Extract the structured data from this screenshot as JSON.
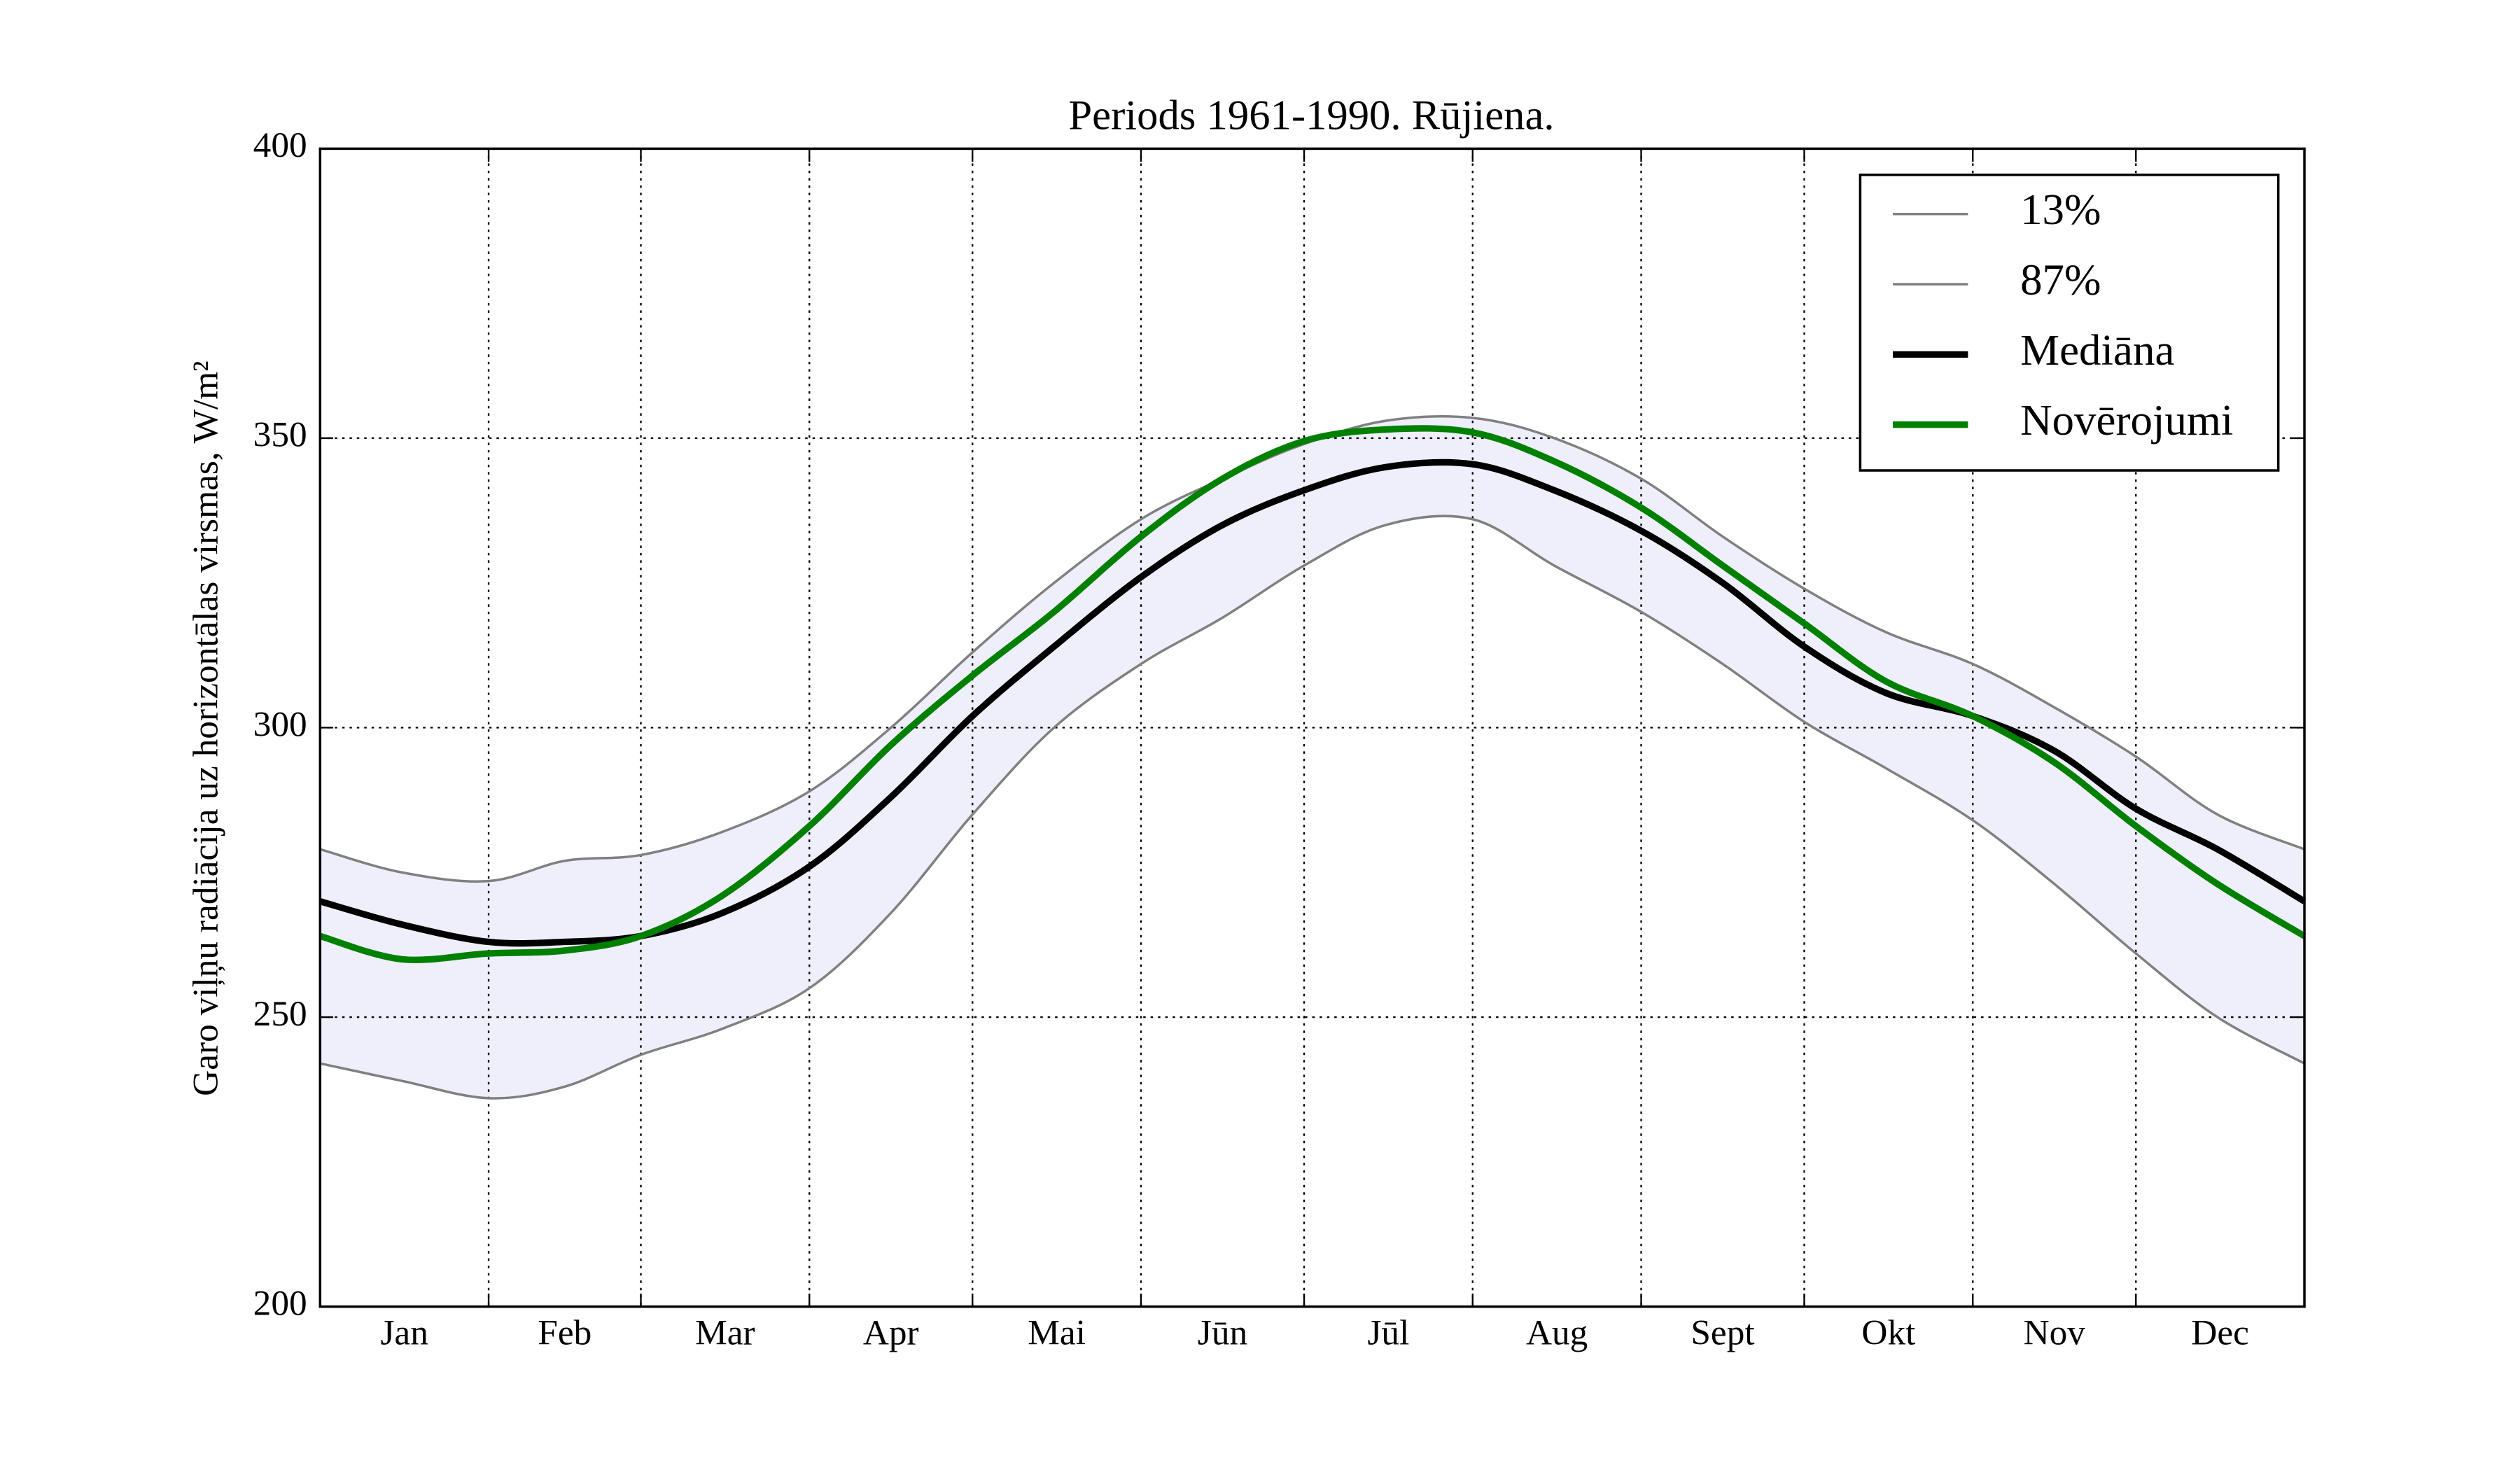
{
  "chart_data": {
    "type": "line",
    "title": "Periods 1961-1990. Rūjiena.",
    "ylabel": "Garo viļņu radiācija uz horizontālas virsmas, W/m²",
    "x": [
      0,
      15,
      31,
      45,
      59,
      74,
      90,
      105,
      120,
      135,
      151,
      166,
      181,
      196,
      212,
      227,
      243,
      258,
      273,
      288,
      304,
      319,
      334,
      349,
      365
    ],
    "series": [
      {
        "name": "13%",
        "color": "#808080",
        "width": 1.5,
        "values": [
          242,
          239,
          236,
          238,
          243.5,
          248,
          255,
          268,
          285,
          300,
          311,
          319,
          328,
          335,
          336,
          328,
          320,
          311,
          301,
          293,
          284,
          273,
          261,
          250,
          242
        ]
      },
      {
        "name": "87%",
        "color": "#808080",
        "width": 1.5,
        "values": [
          279,
          275,
          273.5,
          277,
          278,
          282,
          289,
          300,
          313,
          325,
          336,
          343,
          349,
          353,
          353.5,
          350,
          343,
          333,
          324,
          316.5,
          311,
          303.5,
          295,
          285,
          279
        ]
      },
      {
        "name": "Mediāna",
        "color": "#000000",
        "width": 4,
        "values": [
          270,
          266,
          263,
          263,
          264,
          268,
          276,
          288,
          302,
          314,
          326,
          335,
          341,
          345,
          345.5,
          341,
          334,
          325,
          314,
          306,
          302,
          296,
          286,
          279,
          270
        ]
      },
      {
        "name": "Novērojumi",
        "color": "#008000",
        "width": 4,
        "values": [
          264,
          260,
          261,
          261.5,
          264,
          271,
          283,
          297,
          309,
          320,
          333,
          343,
          349.5,
          351.5,
          351,
          346,
          338,
          328,
          318,
          308,
          302,
          294,
          283,
          273,
          264
        ]
      }
    ],
    "band_color": "#efeffc",
    "xlim": [
      0,
      365
    ],
    "xticks": [
      {
        "value": 15.5,
        "label": "Jan"
      },
      {
        "value": 45,
        "label": "Feb"
      },
      {
        "value": 74.5,
        "label": "Mar"
      },
      {
        "value": 105,
        "label": "Apr"
      },
      {
        "value": 135.5,
        "label": "Mai"
      },
      {
        "value": 166,
        "label": "Jūn"
      },
      {
        "value": 196.5,
        "label": "Jūl"
      },
      {
        "value": 227.5,
        "label": "Aug"
      },
      {
        "value": 258,
        "label": "Sept"
      },
      {
        "value": 288.5,
        "label": "Okt"
      },
      {
        "value": 319,
        "label": "Nov"
      },
      {
        "value": 349.5,
        "label": "Dec"
      }
    ],
    "xgrid": [
      31,
      59,
      90,
      120,
      151,
      181,
      212,
      243,
      273,
      304,
      334
    ],
    "ylim": [
      200,
      400
    ],
    "yticks": [
      200,
      250,
      300,
      350,
      400
    ],
    "grid": true,
    "legend": "upper right"
  }
}
